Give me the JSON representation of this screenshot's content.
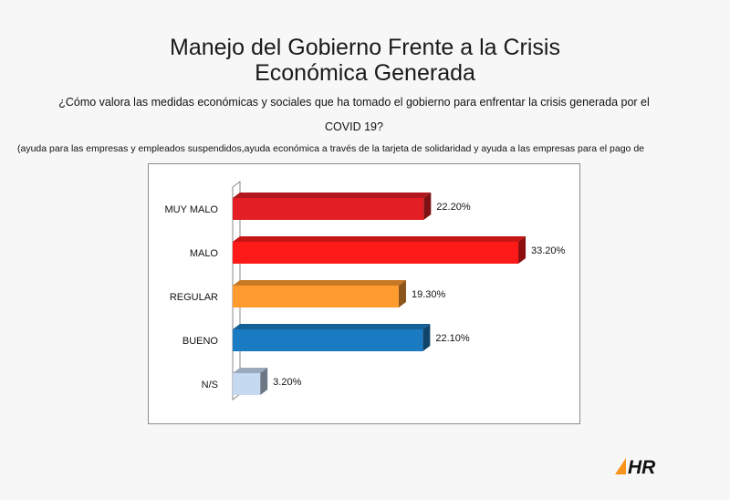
{
  "header": {
    "title_line1": "Manejo del Gobierno Frente a la Crisis",
    "title_line2": "Económica  Generada",
    "question_line1": "¿Cómo valora las medidas económicas y sociales que ha tomado el gobierno para enfrentar la crisis  generada por el",
    "question_line2": "COVID 19?",
    "note": "(ayuda para las empresas y empleados suspendidos,ayuda económica a través de la tarjeta de solidaridad  y ayuda a las empresas para el pago de"
  },
  "logo": {
    "text": "HR",
    "accent": "#f7941d"
  },
  "chart_data": {
    "type": "bar",
    "orientation": "horizontal",
    "style": "3d",
    "categories": [
      "MUY MALO",
      "MALO",
      "REGULAR",
      "BUENO",
      "N/S"
    ],
    "values": [
      22.2,
      33.2,
      19.3,
      22.1,
      3.2
    ],
    "value_labels": [
      "22.20%",
      "33.20%",
      "19.30%",
      "22.10%",
      "3.20%"
    ],
    "colors": [
      "#e31e24",
      "#ff1a1a",
      "#ff9b2f",
      "#1b7bc2",
      "#c5d9f1"
    ],
    "xlim": [
      0,
      35
    ],
    "grid": false,
    "legend": "none"
  }
}
